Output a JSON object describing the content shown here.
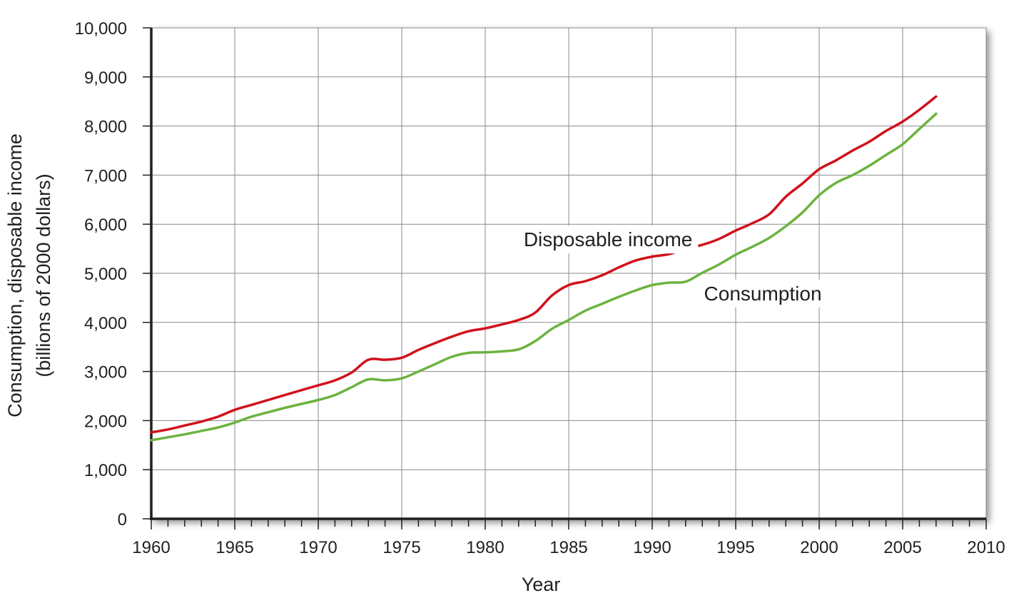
{
  "chart_data": {
    "type": "line",
    "xlabel": "Year",
    "ylabel_line1": "Consumption, disposable income",
    "ylabel_line2": "(billions of 2000 dollars)",
    "xlim": [
      1960,
      2010
    ],
    "ylim": [
      0,
      10000
    ],
    "x_ticks": [
      1960,
      1965,
      1970,
      1975,
      1980,
      1985,
      1990,
      1995,
      2000,
      2005,
      2010
    ],
    "x_tick_labels": [
      "1960",
      "1965",
      "1970",
      "1975",
      "1980",
      "1985",
      "1990",
      "1995",
      "2000",
      "2005",
      "2010"
    ],
    "y_ticks": [
      0,
      1000,
      2000,
      3000,
      4000,
      5000,
      6000,
      7000,
      8000,
      9000,
      10000
    ],
    "y_tick_labels": [
      "0",
      "1,000",
      "2,000",
      "3,000",
      "4,000",
      "5,000",
      "6,000",
      "7,000",
      "8,000",
      "9,000",
      "10,000"
    ],
    "grid": true,
    "x": [
      1960,
      1961,
      1962,
      1963,
      1964,
      1965,
      1966,
      1967,
      1968,
      1969,
      1970,
      1971,
      1972,
      1973,
      1974,
      1975,
      1976,
      1977,
      1978,
      1979,
      1980,
      1981,
      1982,
      1983,
      1984,
      1985,
      1986,
      1987,
      1988,
      1989,
      1990,
      1991,
      1992,
      1993,
      1994,
      1995,
      1996,
      1997,
      1998,
      1999,
      2000,
      2001,
      2002,
      2003,
      2004,
      2005,
      2006,
      2007
    ],
    "series": [
      {
        "name": "Disposable income",
        "color": "#d0111b",
        "values": [
          1760,
          1820,
          1900,
          1980,
          2080,
          2220,
          2320,
          2420,
          2520,
          2620,
          2720,
          2820,
          2980,
          3240,
          3240,
          3280,
          3440,
          3580,
          3710,
          3820,
          3880,
          3960,
          4050,
          4200,
          4550,
          4760,
          4840,
          4960,
          5120,
          5260,
          5340,
          5390,
          5500,
          5580,
          5700,
          5870,
          6020,
          6200,
          6560,
          6830,
          7120,
          7300,
          7500,
          7680,
          7900,
          8090,
          8330,
          8600
        ]
      },
      {
        "name": "Consumption",
        "color": "#6cb33f",
        "values": [
          1600,
          1660,
          1720,
          1790,
          1860,
          1960,
          2080,
          2170,
          2260,
          2340,
          2420,
          2520,
          2680,
          2840,
          2820,
          2860,
          3000,
          3150,
          3300,
          3380,
          3390,
          3410,
          3450,
          3620,
          3870,
          4050,
          4240,
          4380,
          4520,
          4650,
          4760,
          4810,
          4830,
          5010,
          5180,
          5380,
          5540,
          5720,
          5960,
          6240,
          6590,
          6840,
          7000,
          7190,
          7410,
          7630,
          7940,
          8250
        ]
      }
    ],
    "annotations": [
      {
        "text": "Disposable income",
        "x": 1982.3,
        "y": 5550
      },
      {
        "text": "Consumption",
        "x": 1993.1,
        "y": 4450
      }
    ],
    "colors": {
      "grid": "#8a8a8a",
      "axis": "#231f20",
      "plot_border": "#bdbdbd",
      "shadow": "#9a9a9a"
    }
  }
}
